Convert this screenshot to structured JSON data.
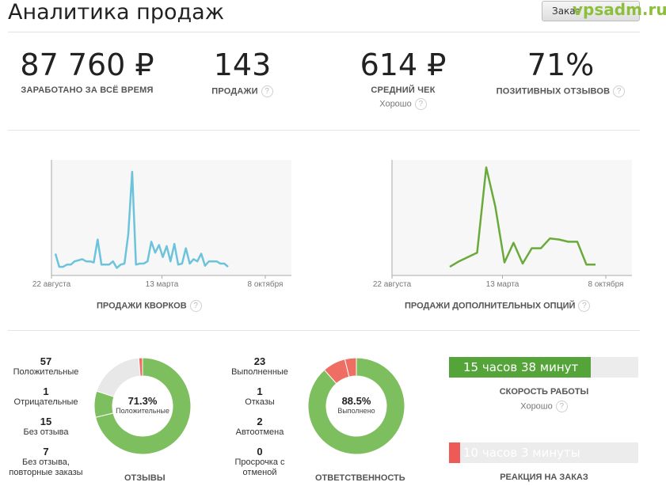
{
  "header": {
    "title": "Аналитика продаж",
    "orders_button": "Заказ",
    "watermark": "vpsadm.ru"
  },
  "stats": [
    {
      "value": "87 760 ₽",
      "label": "ЗАРАБОТАНО ЗА ВСЁ ВРЕМЯ",
      "sub": ""
    },
    {
      "value": "143",
      "label": "ПРОДАЖИ",
      "sub": ""
    },
    {
      "value": "614 ₽",
      "label": "СРЕДНИЙ ЧЕК",
      "sub": "Хорошо"
    },
    {
      "value": "71%",
      "label": "ПОЗИТИВНЫХ ОТЗЫВОВ",
      "sub": ""
    }
  ],
  "help_icon": "?",
  "chart_data": [
    {
      "type": "line",
      "title": "ПРОДАЖИ КВОРКОВ",
      "x_ticks": [
        "22 августа",
        "13 марта",
        "8 октября"
      ],
      "color": "#6cc3dc",
      "ylim": [
        0,
        1
      ],
      "y": [
        0.17,
        0.05,
        0.05,
        0.07,
        0.07,
        0.1,
        0.11,
        0.12,
        0.1,
        0.1,
        0.09,
        0.3,
        0.07,
        0.07,
        0.07,
        0.1,
        0.04,
        0.07,
        0.08,
        0.35,
        0.92,
        0.07,
        0.08,
        0.08,
        0.1,
        0.28,
        0.18,
        0.25,
        0.14,
        0.24,
        0.1,
        0.26,
        0.07,
        0.08,
        0.22,
        0.08,
        0.12,
        0.1,
        0.17,
        0.06,
        0.1,
        0.1,
        0.1,
        0.08,
        0.08,
        0.05
      ]
    },
    {
      "type": "line",
      "title": "ПРОДАЖИ ДОПОЛНИТЕЛЬНЫХ ОПЦИЙ",
      "x_ticks": [
        "22 августа",
        "13 марта",
        "8 октября"
      ],
      "color": "#6aaa3a",
      "ylim": [
        0,
        1
      ],
      "y": [
        0.05,
        0.1,
        0.14,
        0.18,
        0.96,
        0.6,
        0.09,
        0.27,
        0.08,
        0.22,
        0.22,
        0.31,
        0.3,
        0.28,
        0.28,
        0.07,
        0.07
      ]
    }
  ],
  "reviews": {
    "caption": "ОТЗЫВЫ",
    "percent": "71.3%",
    "percent_label": "Положительные",
    "items": [
      {
        "count": "57",
        "label": "Положительные"
      },
      {
        "count": "1",
        "label": "Отрицательные"
      },
      {
        "count": "15",
        "label": "Без отзыва"
      },
      {
        "count": "7",
        "label": "Без отзыва, повторные заказы"
      }
    ],
    "slices": [
      {
        "value": 57,
        "color": "#7dbf5e"
      },
      {
        "value": 7,
        "color": "#7dbf5e"
      },
      {
        "value": 15,
        "color": "#e8e8e8"
      },
      {
        "value": 1,
        "color": "#ef6e64"
      }
    ]
  },
  "responsibility": {
    "caption": "ОТВЕТСТВЕННОСТЬ",
    "percent": "88.5%",
    "percent_label": "Выполнено",
    "items": [
      {
        "count": "23",
        "label": "Выполненные"
      },
      {
        "count": "1",
        "label": "Отказы"
      },
      {
        "count": "2",
        "label": "Автоотмена"
      },
      {
        "count": "0",
        "label": "Просрочка с отменой"
      }
    ],
    "slices": [
      {
        "value": 23,
        "color": "#7dbf5e"
      },
      {
        "value": 2,
        "color": "#ef6e64"
      },
      {
        "value": 1,
        "color": "#ef6e64"
      }
    ]
  },
  "speed": {
    "value_text": "15 часов 38 минут",
    "fill": 0.75,
    "color": "#55a43a",
    "title": "СКОРОСТЬ РАБОТЫ",
    "sub": "Хорошо"
  },
  "reaction": {
    "value_text": "10 часов 3 минуты",
    "fill": 0.06,
    "color": "#ee5a55",
    "title": "РЕАКЦИЯ НА ЗАКАЗ"
  }
}
